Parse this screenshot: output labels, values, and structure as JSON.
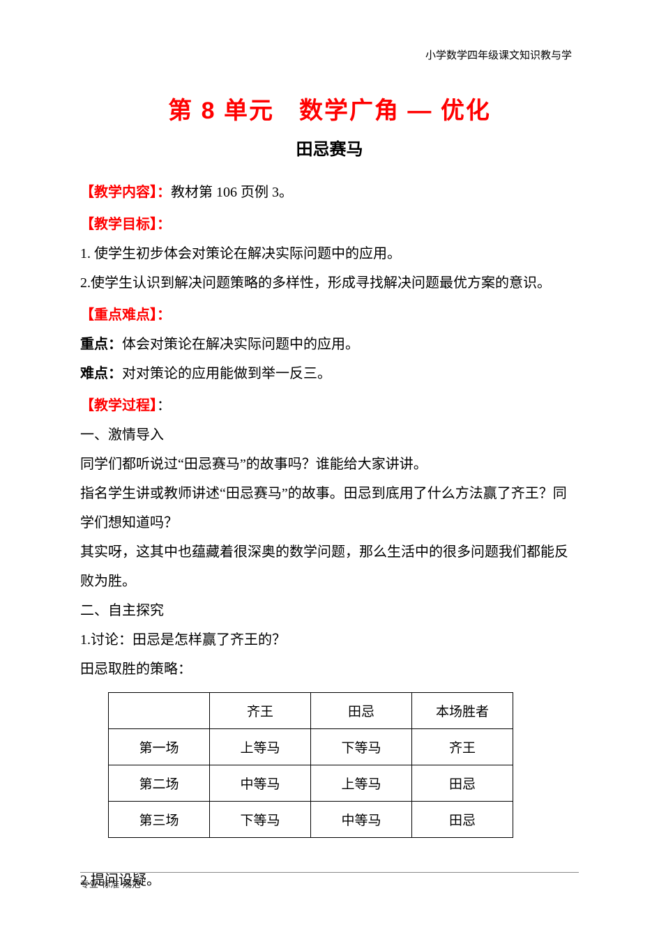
{
  "header": "小学数学四年级课文知识教与学",
  "unit_title": "第 8 单元 数学广角 — 优化",
  "subtitle": "田忌赛马",
  "sections": {
    "content_label": "【教学内容】：",
    "content_text": "教材第 106 页例 3。",
    "objective_label": "【教学目标】：",
    "objective_1": "1. 使学生初步体会对策论在解决实际问题中的应用。",
    "objective_2": "2.使学生认识到解决问题策略的多样性，形成寻找解决问题最优方案的意识。",
    "keypoint_label": "【重点难点】：",
    "keypoint_bold": "重点：",
    "keypoint_text": "体会对策论在解决实际问题中的应用。",
    "difficulty_bold": "难点：",
    "difficulty_text": "对对策论的应用能做到举一反三。",
    "process_label": "【教学过程】",
    "process_colon": "：",
    "process_1": "一、激情导入",
    "process_2": "同学们都听说过“田忌赛马”的故事吗？谁能给大家讲讲。",
    "process_3": "指名学生讲或教师讲述“田忌赛马”的故事。田忌到底用了什么方法赢了齐王？同学们想知道吗？",
    "process_4": "其实呀，这其中也蕴藏着很深奥的数学问题，那么生活中的很多问题我们都能反败为胜。",
    "process_5": "二、自主探究",
    "process_6": "1.讨论：田忌是怎样赢了齐王的？",
    "process_7": "田忌取胜的策略：",
    "process_8": "2.提问设疑。"
  },
  "table": {
    "headers": [
      "",
      "齐王",
      "田忌",
      "本场胜者"
    ],
    "rows": [
      [
        "第一场",
        "上等马",
        "下等马",
        "齐王"
      ],
      [
        "第二场",
        "中等马",
        "上等马",
        "田忌"
      ],
      [
        "第三场",
        "下等马",
        "中等马",
        "田忌"
      ]
    ]
  },
  "footer": "专业·标准·规范",
  "colors": {
    "red": "#ff0000",
    "black": "#000000",
    "border": "#000000",
    "footer_line": "#888888"
  }
}
